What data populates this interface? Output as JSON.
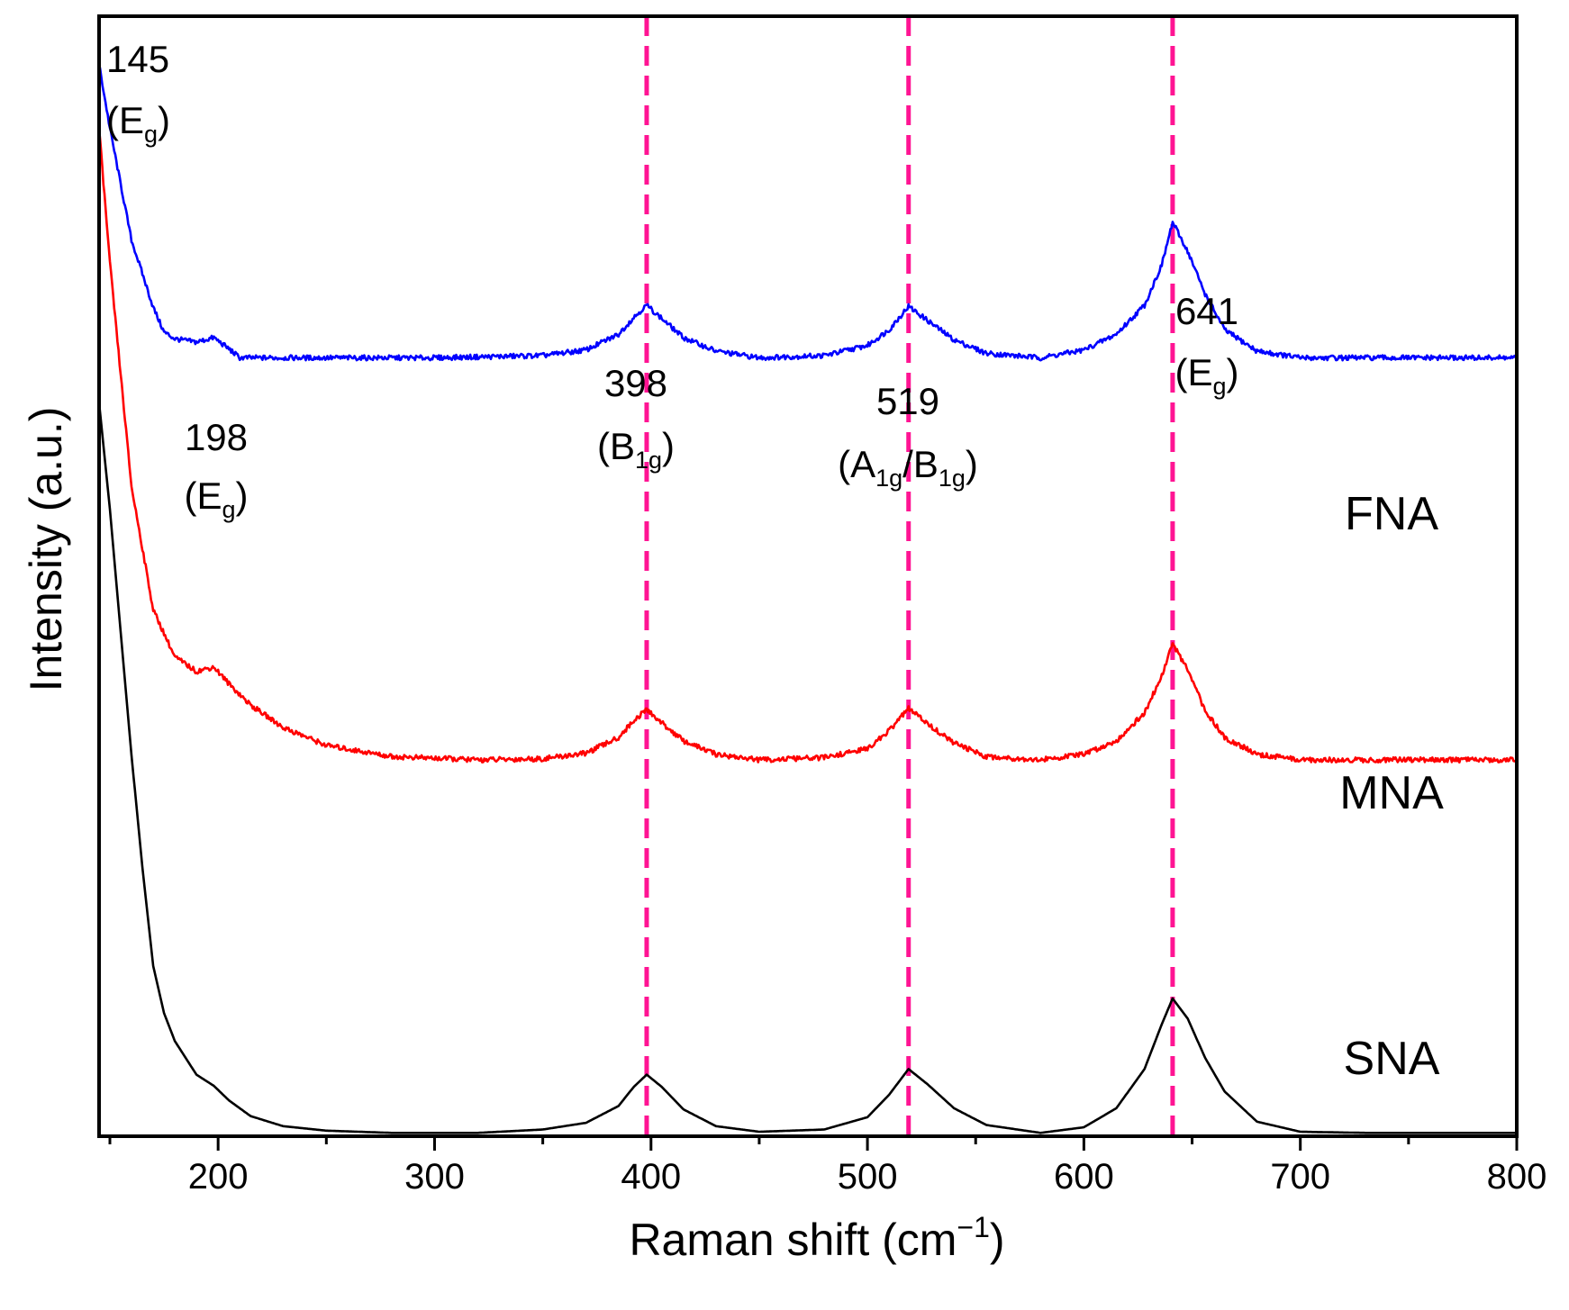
{
  "chart_data": {
    "type": "line",
    "title": "",
    "xlabel": "Raman shift (cm",
    "xlabel_sup": "−1",
    "xlabel_close": ")",
    "ylabel": "Intensity (a.u.)",
    "xlim": [
      145,
      800
    ],
    "ylim": [
      0,
      1
    ],
    "x_ticks": [
      200,
      300,
      400,
      500,
      600,
      700,
      800
    ],
    "x_minor_ticks": [
      150,
      250,
      350,
      450,
      550,
      650,
      750
    ],
    "y_ticks_shown": false,
    "reference_lines": [
      398,
      519,
      641
    ],
    "reference_line_color": "#ff1493",
    "peak_annotations": [
      {
        "wavenumber": 145,
        "value": "145",
        "mode_base": "E",
        "mode_sub": "g",
        "mode_text": "(Eg)"
      },
      {
        "wavenumber": 198,
        "value": "198",
        "mode_base": "E",
        "mode_sub": "g",
        "mode_text": "(Eg)"
      },
      {
        "wavenumber": 398,
        "value": "398",
        "mode_base": "B",
        "mode_sub": "1g",
        "mode_text": "(B1g)"
      },
      {
        "wavenumber": 519,
        "value": "519",
        "mode_base": "A",
        "mode_sub": "1g",
        "mode_base2": "/B",
        "mode_sub2": "1g",
        "mode_text": "(A1g/B1g)"
      },
      {
        "wavenumber": 641,
        "value": "641",
        "mode_base": "E",
        "mode_sub": "g",
        "mode_text": "(Eg)"
      }
    ],
    "series": [
      {
        "name": "FNA",
        "color": "#0000ff",
        "baseline": 0.695,
        "x": [
          145,
          150,
          160,
          170,
          175,
          180,
          190,
          198,
          205,
          210,
          220,
          250,
          300,
          350,
          370,
          385,
          392,
          398,
          405,
          415,
          430,
          450,
          480,
          500,
          510,
          519,
          528,
          540,
          555,
          580,
          600,
          615,
          628,
          636,
          641,
          648,
          656,
          665,
          680,
          700,
          730,
          760,
          800
        ],
        "y": [
          0.957,
          0.9,
          0.8,
          0.74,
          0.718,
          0.712,
          0.709,
          0.713,
          0.703,
          0.695,
          0.695,
          0.695,
          0.695,
          0.697,
          0.702,
          0.716,
          0.731,
          0.742,
          0.73,
          0.713,
          0.701,
          0.695,
          0.697,
          0.706,
          0.72,
          0.741,
          0.728,
          0.711,
          0.699,
          0.695,
          0.702,
          0.716,
          0.742,
          0.778,
          0.816,
          0.79,
          0.752,
          0.72,
          0.701,
          0.695,
          0.695,
          0.695,
          0.695
        ]
      },
      {
        "name": "MNA",
        "color": "#ff0000",
        "baseline": 0.336,
        "x": [
          145,
          150,
          160,
          170,
          180,
          190,
          198,
          205,
          215,
          230,
          250,
          280,
          320,
          350,
          370,
          385,
          392,
          398,
          405,
          415,
          430,
          450,
          480,
          500,
          510,
          519,
          528,
          540,
          555,
          580,
          600,
          615,
          628,
          636,
          641,
          648,
          656,
          665,
          680,
          700,
          730,
          760,
          800
        ],
        "y": [
          0.9,
          0.78,
          0.58,
          0.47,
          0.428,
          0.415,
          0.419,
          0.404,
          0.385,
          0.365,
          0.349,
          0.339,
          0.336,
          0.337,
          0.342,
          0.356,
          0.371,
          0.381,
          0.369,
          0.353,
          0.341,
          0.336,
          0.338,
          0.346,
          0.362,
          0.382,
          0.368,
          0.351,
          0.339,
          0.336,
          0.341,
          0.353,
          0.378,
          0.411,
          0.44,
          0.416,
          0.38,
          0.356,
          0.341,
          0.336,
          0.336,
          0.336,
          0.336
        ]
      },
      {
        "name": "SNA",
        "color": "#000000",
        "baseline": 0.003,
        "x": [
          145,
          150,
          155,
          160,
          165,
          170,
          175,
          180,
          190,
          198,
          205,
          215,
          230,
          250,
          280,
          320,
          350,
          370,
          385,
          392,
          398,
          405,
          415,
          430,
          450,
          480,
          500,
          510,
          519,
          528,
          540,
          555,
          580,
          600,
          615,
          628,
          636,
          641,
          648,
          656,
          665,
          680,
          700,
          730,
          760,
          800
        ],
        "y": [
          0.655,
          0.56,
          0.45,
          0.34,
          0.24,
          0.152,
          0.11,
          0.085,
          0.055,
          0.045,
          0.032,
          0.018,
          0.009,
          0.005,
          0.003,
          0.003,
          0.006,
          0.012,
          0.027,
          0.044,
          0.055,
          0.044,
          0.024,
          0.009,
          0.004,
          0.006,
          0.017,
          0.037,
          0.06,
          0.046,
          0.025,
          0.01,
          0.003,
          0.008,
          0.025,
          0.06,
          0.1,
          0.123,
          0.105,
          0.07,
          0.04,
          0.013,
          0.004,
          0.003,
          0.003,
          0.003
        ]
      }
    ]
  }
}
